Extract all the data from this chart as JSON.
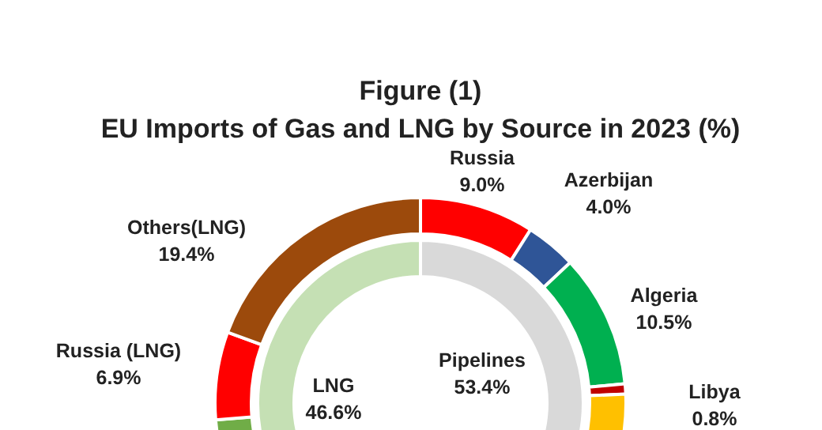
{
  "chart_data": [
    {
      "type": "donut",
      "title": "Figure (1)",
      "subtitle": "EU Imports of Gas and LNG by Source in 2023 (%)",
      "categories": [
        "Russia",
        "Azerbijan",
        "Algeria",
        "Libya",
        null,
        null,
        "Russia (LNG)",
        "Others(LNG)"
      ],
      "values": [
        9.0,
        4.0,
        10.5,
        0.8,
        29.1,
        20.3,
        6.9,
        19.4
      ],
      "value_labels": [
        "9.0%",
        "4.0%",
        "10.5%",
        "0.8%",
        null,
        null,
        "6.9%",
        "19.4%"
      ],
      "colors": [
        "#ff0000",
        "#2f5597",
        "#00b050",
        "#c00000",
        "#ffc000",
        "#70ad47",
        "#ff0000",
        "#9c4a0c"
      ]
    },
    {
      "type": "donut",
      "categories": [
        "Pipelines",
        "LNG"
      ],
      "values": [
        53.4,
        46.6
      ],
      "value_labels": [
        "53.4%",
        "46.6%"
      ],
      "colors": [
        "#d9d9d9",
        "#c5e0b4"
      ]
    }
  ]
}
